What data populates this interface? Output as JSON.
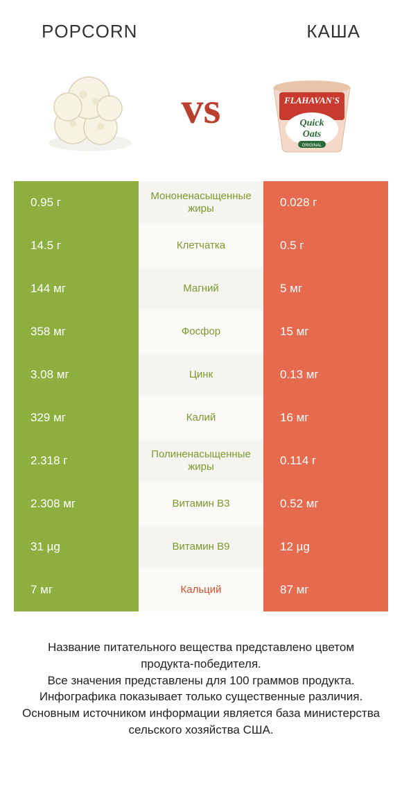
{
  "header": {
    "left_title": "Popcorn",
    "right_title": "КАША",
    "vs": "vs"
  },
  "colors": {
    "left_winner": "#8daf3f",
    "right_winner": "#e66a4e",
    "mid_bg_even": "#f5f4ef",
    "mid_bg_odd": "#fbfaf6",
    "nutrient_left_color": "#7a9a2e",
    "nutrient_right_color": "#d54f30",
    "vs_color": "#bb3f2f"
  },
  "rows": [
    {
      "left": "0.95 г",
      "right": "0.028 г",
      "nutrient": "Мононенасыщенные жиры",
      "winner": "left"
    },
    {
      "left": "14.5 г",
      "right": "0.5 г",
      "nutrient": "Клетчатка",
      "winner": "left"
    },
    {
      "left": "144 мг",
      "right": "5 мг",
      "nutrient": "Магний",
      "winner": "left"
    },
    {
      "left": "358 мг",
      "right": "15 мг",
      "nutrient": "Фосфор",
      "winner": "left"
    },
    {
      "left": "3.08 мг",
      "right": "0.13 мг",
      "nutrient": "Цинк",
      "winner": "left"
    },
    {
      "left": "329 мг",
      "right": "16 мг",
      "nutrient": "Калий",
      "winner": "left"
    },
    {
      "left": "2.318 г",
      "right": "0.114 г",
      "nutrient": "Полиненасыщенные жиры",
      "winner": "left"
    },
    {
      "left": "2.308 мг",
      "right": "0.52 мг",
      "nutrient": "Витамин B3",
      "winner": "left"
    },
    {
      "left": "31 µg",
      "right": "12 µg",
      "nutrient": "Витамин B9",
      "winner": "left"
    },
    {
      "left": "7 мг",
      "right": "87 мг",
      "nutrient": "Кальций",
      "winner": "right"
    }
  ],
  "footer": {
    "line1": "Название питательного вещества представлено цветом продукта-победителя.",
    "line2": "Все значения представлены для 100 граммов продукта.",
    "line3": "Инфографика показывает только существенные различия.",
    "line4": "Основным источником информации является база министерства сельского хозяйства США."
  }
}
